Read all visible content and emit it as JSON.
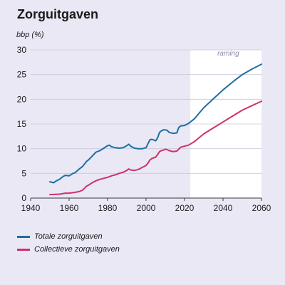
{
  "chart_data": {
    "type": "line",
    "title": "Zorguitgaven",
    "ylabel": "bbp (%)",
    "xlabel": "",
    "xlim": [
      1940,
      2060
    ],
    "ylim": [
      0,
      30
    ],
    "x_ticks": [
      1940,
      1960,
      1980,
      2000,
      2020,
      2040,
      2060
    ],
    "y_ticks": [
      0,
      5,
      10,
      15,
      20,
      25,
      30
    ],
    "grid": "horizontal",
    "legend_position": "bottom-left",
    "projection": {
      "label": "raming",
      "x_start": 2023,
      "x_end": 2060
    },
    "series": [
      {
        "name": "Totale zorguitgaven",
        "color": "#1e6ea3",
        "x": [
          1950,
          1952,
          1953,
          1955,
          1957,
          1958,
          1960,
          1962,
          1963,
          1965,
          1967,
          1969,
          1970,
          1972,
          1974,
          1976,
          1978,
          1980,
          1981,
          1982,
          1984,
          1986,
          1988,
          1990,
          1991,
          1992,
          1994,
          1996,
          1998,
          2000,
          2001,
          2002,
          2003,
          2005,
          2006,
          2007,
          2008,
          2009,
          2010,
          2011,
          2012,
          2014,
          2016,
          2017,
          2018,
          2020,
          2022,
          2025,
          2030,
          2035,
          2040,
          2045,
          2050,
          2055,
          2060
        ],
        "y": [
          3.3,
          3.1,
          3.4,
          3.8,
          4.4,
          4.6,
          4.5,
          5.0,
          5.1,
          5.8,
          6.4,
          7.4,
          7.7,
          8.5,
          9.3,
          9.6,
          10.1,
          10.6,
          10.7,
          10.4,
          10.2,
          10.1,
          10.2,
          10.6,
          10.9,
          10.5,
          10.1,
          10.0,
          10.0,
          10.2,
          11.0,
          11.8,
          11.9,
          11.6,
          12.2,
          13.3,
          13.6,
          13.8,
          13.8,
          13.7,
          13.3,
          13.1,
          13.2,
          14.3,
          14.6,
          14.7,
          15.1,
          16.0,
          18.3,
          20.1,
          21.9,
          23.5,
          25.0,
          26.1,
          27.1
        ]
      },
      {
        "name": "Collectieve zorguitgaven",
        "color": "#d0306a",
        "x": [
          1950,
          1955,
          1958,
          1960,
          1962,
          1965,
          1967,
          1969,
          1970,
          1972,
          1974,
          1976,
          1978,
          1980,
          1982,
          1984,
          1986,
          1988,
          1990,
          1991,
          1992,
          1994,
          1996,
          1998,
          2000,
          2001,
          2002,
          2003,
          2005,
          2006,
          2007,
          2008,
          2009,
          2010,
          2011,
          2012,
          2014,
          2016,
          2018,
          2020,
          2022,
          2025,
          2030,
          2035,
          2040,
          2045,
          2050,
          2055,
          2060
        ],
        "y": [
          0.7,
          0.8,
          1.0,
          1.0,
          1.1,
          1.3,
          1.6,
          2.4,
          2.6,
          3.1,
          3.5,
          3.8,
          4.0,
          4.2,
          4.5,
          4.7,
          5.0,
          5.2,
          5.6,
          5.9,
          5.7,
          5.6,
          5.8,
          6.2,
          6.6,
          7.1,
          7.7,
          8.0,
          8.3,
          8.8,
          9.4,
          9.6,
          9.7,
          9.9,
          9.8,
          9.6,
          9.4,
          9.5,
          10.3,
          10.5,
          10.7,
          11.4,
          13.0,
          14.2,
          15.4,
          16.6,
          17.8,
          18.7,
          19.6
        ]
      }
    ]
  }
}
